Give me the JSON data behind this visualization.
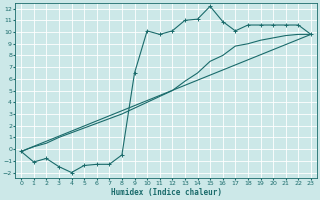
{
  "title": "",
  "xlabel": "Humidex (Indice chaleur)",
  "bg_color": "#cce8e8",
  "grid_color": "#ffffff",
  "line_color": "#1a6b6b",
  "xlim": [
    -0.5,
    23.5
  ],
  "ylim": [
    -2.5,
    12.5
  ],
  "xticks": [
    0,
    1,
    2,
    3,
    4,
    5,
    6,
    7,
    8,
    9,
    10,
    11,
    12,
    13,
    14,
    15,
    16,
    17,
    18,
    19,
    20,
    21,
    22,
    23
  ],
  "yticks": [
    -2,
    -1,
    0,
    1,
    2,
    3,
    4,
    5,
    6,
    7,
    8,
    9,
    10,
    11,
    12
  ],
  "line1_x": [
    0,
    1,
    2,
    3,
    4,
    5,
    6,
    7,
    8,
    9,
    10,
    11,
    12,
    13,
    14,
    15,
    16,
    17,
    18,
    19,
    20,
    21,
    22,
    23
  ],
  "line1_y": [
    -0.2,
    -1.1,
    -0.8,
    -1.5,
    -2.0,
    -1.4,
    -1.3,
    -1.3,
    -0.5,
    6.5,
    10.1,
    9.8,
    10.1,
    11.0,
    11.1,
    12.2,
    10.9,
    10.1,
    10.6,
    10.6,
    10.6,
    10.6,
    10.6,
    9.8
  ],
  "line2_x": [
    0,
    1,
    2,
    3,
    4,
    5,
    6,
    7,
    8,
    9,
    10,
    11,
    12,
    13,
    14,
    15,
    16,
    17,
    18,
    19,
    20,
    21,
    22,
    23
  ],
  "line2_y": [
    -0.2,
    0.2,
    0.5,
    1.0,
    1.4,
    1.8,
    2.2,
    2.6,
    3.0,
    3.5,
    4.0,
    4.5,
    5.0,
    5.8,
    6.5,
    7.5,
    8.0,
    8.8,
    9.0,
    9.3,
    9.5,
    9.7,
    9.8,
    9.8
  ],
  "line3_x": [
    0,
    23
  ],
  "line3_y": [
    -0.2,
    9.8
  ]
}
